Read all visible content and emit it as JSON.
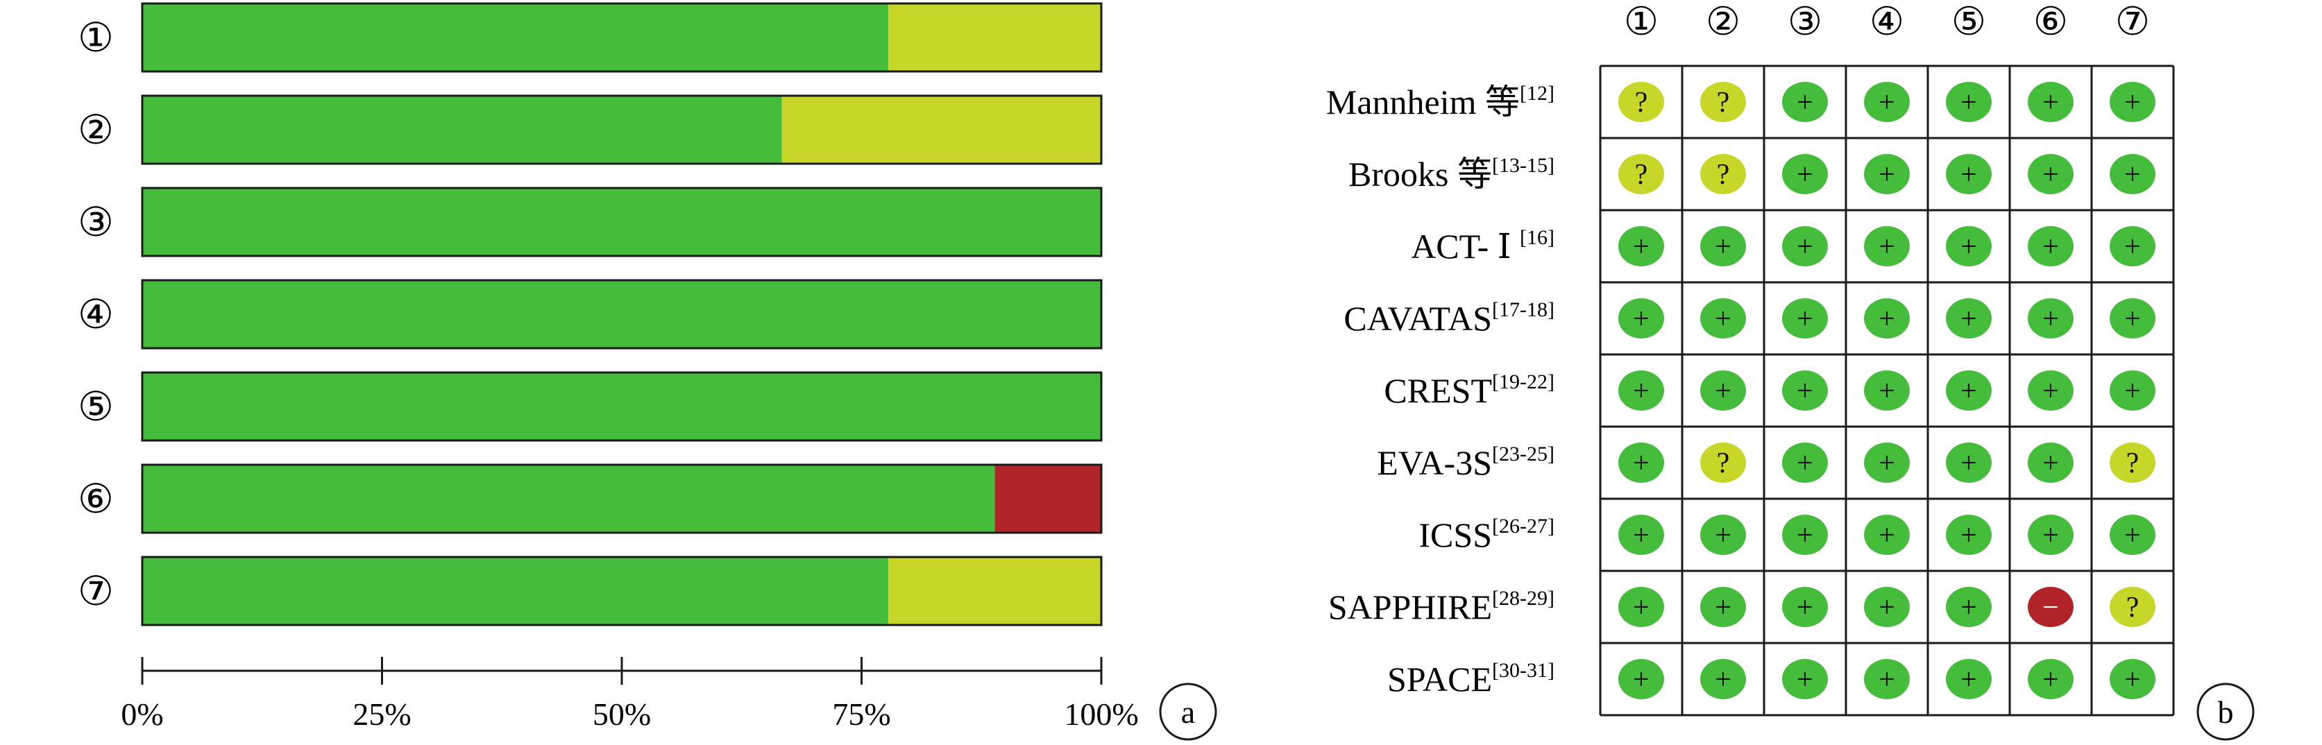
{
  "chart_data": [
    {
      "type": "bar",
      "panel_label": "a",
      "orientation": "horizontal",
      "stacked": true,
      "categories": [
        "①",
        "②",
        "③",
        "④",
        "⑤",
        "⑥",
        "⑦"
      ],
      "series": [
        {
          "color": "#46bc3c",
          "values": [
            77.8,
            66.7,
            100,
            100,
            100,
            88.9,
            77.8
          ]
        },
        {
          "color": "#c8d62a",
          "values": [
            22.2,
            33.3,
            0,
            0,
            0,
            0,
            22.2
          ]
        },
        {
          "color": "#b1242a",
          "values": [
            0,
            0,
            0,
            0,
            0,
            11.1,
            0
          ]
        }
      ],
      "xlim": [
        0,
        100
      ],
      "xticks": [
        "0%",
        "25%",
        "50%",
        "75%",
        "100%"
      ],
      "grid": false,
      "legend": "none"
    },
    {
      "type": "table",
      "panel_label": "b",
      "columns": [
        "①",
        "②",
        "③",
        "④",
        "⑤",
        "⑥",
        "⑦"
      ],
      "rows": [
        {
          "name": "Mannheim 等",
          "ref": "[12]",
          "cells": [
            "?",
            "?",
            "+",
            "+",
            "+",
            "+",
            "+"
          ]
        },
        {
          "name": "Brooks 等",
          "ref": "[13-15]",
          "cells": [
            "?",
            "?",
            "+",
            "+",
            "+",
            "+",
            "+"
          ]
        },
        {
          "name": "ACT- Ⅰ ",
          "ref": "[16]",
          "cells": [
            "+",
            "+",
            "+",
            "+",
            "+",
            "+",
            "+"
          ]
        },
        {
          "name": "CAVATAS",
          "ref": "[17-18]",
          "cells": [
            "+",
            "+",
            "+",
            "+",
            "+",
            "+",
            "+"
          ]
        },
        {
          "name": "CREST",
          "ref": "[19-22]",
          "cells": [
            "+",
            "+",
            "+",
            "+",
            "+",
            "+",
            "+"
          ]
        },
        {
          "name": "EVA-3S",
          "ref": "[23-25]",
          "cells": [
            "+",
            "?",
            "+",
            "+",
            "+",
            "+",
            "?"
          ]
        },
        {
          "name": "ICSS",
          "ref": "[26-27]",
          "cells": [
            "+",
            "+",
            "+",
            "+",
            "+",
            "+",
            "+"
          ]
        },
        {
          "name": "SAPPHIRE",
          "ref": "[28-29]",
          "cells": [
            "+",
            "+",
            "+",
            "+",
            "+",
            "−",
            "?"
          ]
        },
        {
          "name": "SPACE",
          "ref": "[30-31]",
          "cells": [
            "+",
            "+",
            "+",
            "+",
            "+",
            "+",
            "+"
          ]
        }
      ],
      "symbol_colors": {
        "+": "#46bc3c",
        "?": "#c8d62a",
        "−": "#b1242a"
      }
    }
  ]
}
